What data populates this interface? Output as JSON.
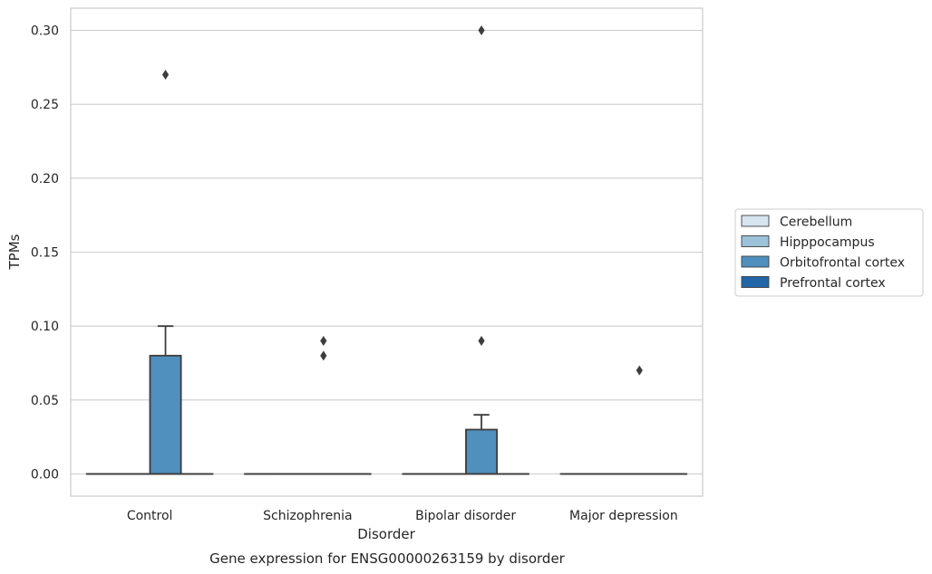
{
  "chart_data": {
    "type": "box",
    "caption": "Gene expression for ENSG00000263159 by disorder",
    "xlabel": "Disorder",
    "ylabel": "TPMs",
    "ylim": [
      -0.015,
      0.315
    ],
    "yticks": [
      0.0,
      0.05,
      0.1,
      0.15,
      0.2,
      0.25,
      0.3
    ],
    "ytick_labels": [
      "0.00",
      "0.05",
      "0.10",
      "0.15",
      "0.20",
      "0.25",
      "0.30"
    ],
    "grid": "horizontal",
    "legend_position": "right-center",
    "categories": [
      "Control",
      "Schizophrenia",
      "Bipolar disorder",
      "Major depression"
    ],
    "series": [
      {
        "name": "Cerebellum",
        "color": "#d6e4f0",
        "boxes": [
          {
            "category": "Control",
            "q1": 0,
            "median": 0,
            "q3": 0,
            "whisker_low": 0,
            "whisker_high": 0,
            "outliers": []
          },
          {
            "category": "Schizophrenia",
            "q1": 0,
            "median": 0,
            "q3": 0,
            "whisker_low": 0,
            "whisker_high": 0,
            "outliers": []
          },
          {
            "category": "Bipolar disorder",
            "q1": 0,
            "median": 0,
            "q3": 0,
            "whisker_low": 0,
            "whisker_high": 0,
            "outliers": []
          },
          {
            "category": "Major depression",
            "q1": 0,
            "median": 0,
            "q3": 0,
            "whisker_low": 0,
            "whisker_high": 0,
            "outliers": []
          }
        ]
      },
      {
        "name": "Hipppocampus",
        "color": "#9cc3da",
        "boxes": [
          {
            "category": "Control",
            "q1": 0,
            "median": 0,
            "q3": 0,
            "whisker_low": 0,
            "whisker_high": 0,
            "outliers": []
          },
          {
            "category": "Schizophrenia",
            "q1": 0,
            "median": 0,
            "q3": 0,
            "whisker_low": 0,
            "whisker_high": 0,
            "outliers": []
          },
          {
            "category": "Bipolar disorder",
            "q1": 0,
            "median": 0,
            "q3": 0,
            "whisker_low": 0,
            "whisker_high": 0,
            "outliers": []
          },
          {
            "category": "Major depression",
            "q1": 0,
            "median": 0,
            "q3": 0,
            "whisker_low": 0,
            "whisker_high": 0,
            "outliers": []
          }
        ]
      },
      {
        "name": "Orbitofrontal cortex",
        "color": "#4f90bf",
        "boxes": [
          {
            "category": "Control",
            "q1": 0,
            "median": 0,
            "q3": 0.08,
            "whisker_low": 0,
            "whisker_high": 0.1,
            "outliers": [
              0.27
            ]
          },
          {
            "category": "Schizophrenia",
            "q1": 0,
            "median": 0,
            "q3": 0,
            "whisker_low": 0,
            "whisker_high": 0,
            "outliers": [
              0.09,
              0.08
            ]
          },
          {
            "category": "Bipolar disorder",
            "q1": 0,
            "median": 0,
            "q3": 0.03,
            "whisker_low": 0,
            "whisker_high": 0.04,
            "outliers": [
              0.3,
              0.09
            ]
          },
          {
            "category": "Major depression",
            "q1": 0,
            "median": 0,
            "q3": 0,
            "whisker_low": 0,
            "whisker_high": 0,
            "outliers": [
              0.07
            ]
          }
        ]
      },
      {
        "name": "Prefrontal cortex",
        "color": "#2166a8",
        "boxes": [
          {
            "category": "Control",
            "q1": 0,
            "median": 0,
            "q3": 0,
            "whisker_low": 0,
            "whisker_high": 0,
            "outliers": []
          },
          {
            "category": "Schizophrenia",
            "q1": 0,
            "median": 0,
            "q3": 0,
            "whisker_low": 0,
            "whisker_high": 0,
            "outliers": []
          },
          {
            "category": "Bipolar disorder",
            "q1": 0,
            "median": 0,
            "q3": 0,
            "whisker_low": 0,
            "whisker_high": 0,
            "outliers": []
          },
          {
            "category": "Major depression",
            "q1": 0,
            "median": 0,
            "q3": 0,
            "whisker_low": 0,
            "whisker_high": 0,
            "outliers": []
          }
        ]
      }
    ]
  }
}
